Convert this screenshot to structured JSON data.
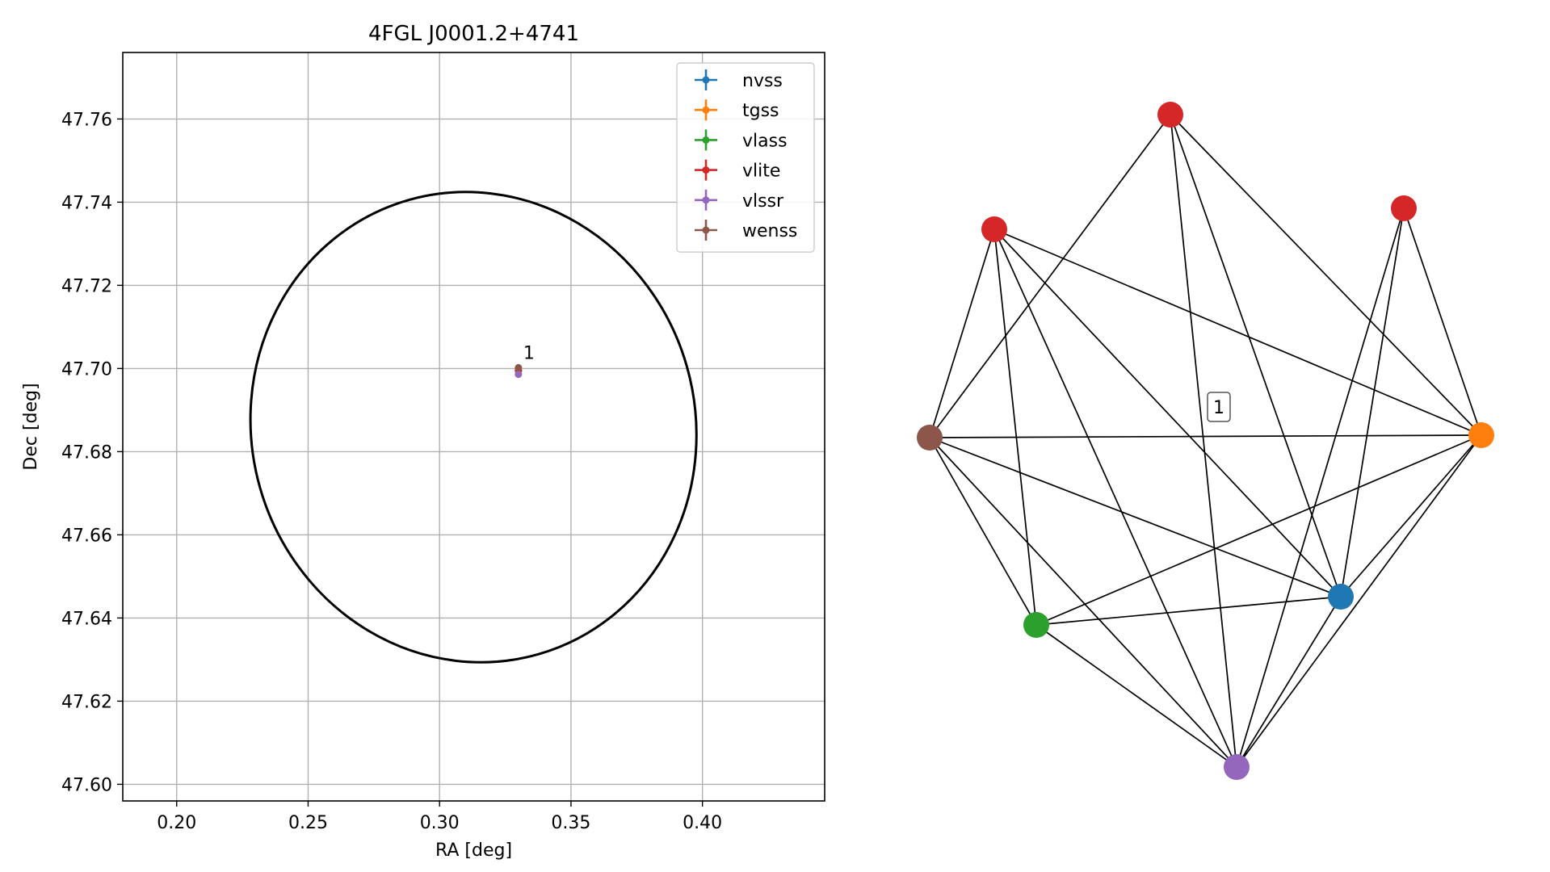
{
  "chart_data": [
    {
      "type": "scatter",
      "title": "4FGL J0001.2+4741",
      "xlabel": "RA [deg]",
      "ylabel": "Dec [deg]",
      "xlim": [
        0.1795,
        0.4465
      ],
      "ylim": [
        47.596,
        47.776
      ],
      "xticks": [
        0.2,
        0.25,
        0.3,
        0.35,
        0.4
      ],
      "xtick_labels": [
        "0.20",
        "0.25",
        "0.30",
        "0.35",
        "0.40"
      ],
      "yticks": [
        47.6,
        47.62,
        47.64,
        47.66,
        47.68,
        47.7,
        47.72,
        47.74,
        47.76
      ],
      "ytick_labels": [
        "47.60",
        "47.62",
        "47.64",
        "47.66",
        "47.68",
        "47.70",
        "47.72",
        "47.74",
        "47.76"
      ],
      "grid": true,
      "legend_position": "top-right",
      "ellipse": {
        "center_ra": 0.3129,
        "center_dec": 47.6859,
        "semi_ra": 0.0844,
        "semi_dec": 0.0568,
        "tilt_deg": -16,
        "color": "#000000"
      },
      "series": [
        {
          "name": "nvss",
          "color": "#1f77b4",
          "points": [
            {
              "ra": 0.33,
              "dec": 47.6995
            }
          ]
        },
        {
          "name": "tgss",
          "color": "#ff7f0e",
          "points": [
            {
              "ra": 0.33,
              "dec": 47.6995
            }
          ]
        },
        {
          "name": "vlass",
          "color": "#2ca02c",
          "points": [
            {
              "ra": 0.33,
              "dec": 47.6995
            }
          ]
        },
        {
          "name": "vlite",
          "color": "#d62728",
          "points": [
            {
              "ra": 0.33,
              "dec": 47.6995
            }
          ]
        },
        {
          "name": "vlssr",
          "color": "#9467bd",
          "points": [
            {
              "ra": 0.33,
              "dec": 47.6986
            }
          ]
        },
        {
          "name": "wenss",
          "color": "#8c564b",
          "points": [
            {
              "ra": 0.33,
              "dec": 47.7002
            }
          ]
        }
      ],
      "annotations": [
        {
          "text": "1",
          "ra": 0.33,
          "dec": 47.7002
        }
      ]
    },
    {
      "type": "network",
      "cluster_label": "1",
      "nodes": [
        {
          "id": "vlite_a",
          "color": "#d62728"
        },
        {
          "id": "vlite_b",
          "color": "#d62728"
        },
        {
          "id": "vlite_c",
          "color": "#d62728"
        },
        {
          "id": "wenss",
          "color": "#8c564b"
        },
        {
          "id": "tgss",
          "color": "#ff7f0e"
        },
        {
          "id": "nvss",
          "color": "#1f77b4"
        },
        {
          "id": "vlass",
          "color": "#2ca02c"
        },
        {
          "id": "vlssr",
          "color": "#9467bd"
        }
      ],
      "edges": [
        [
          "vlite_a",
          "wenss"
        ],
        [
          "vlite_a",
          "tgss"
        ],
        [
          "vlite_a",
          "nvss"
        ],
        [
          "vlite_a",
          "vlssr"
        ],
        [
          "vlite_b",
          "wenss"
        ],
        [
          "vlite_b",
          "tgss"
        ],
        [
          "vlite_b",
          "nvss"
        ],
        [
          "vlite_b",
          "vlass"
        ],
        [
          "vlite_b",
          "vlssr"
        ],
        [
          "vlite_c",
          "tgss"
        ],
        [
          "vlite_c",
          "nvss"
        ],
        [
          "vlite_c",
          "vlssr"
        ],
        [
          "wenss",
          "tgss"
        ],
        [
          "wenss",
          "nvss"
        ],
        [
          "wenss",
          "vlass"
        ],
        [
          "wenss",
          "vlssr"
        ],
        [
          "tgss",
          "vlass"
        ],
        [
          "tgss",
          "nvss"
        ],
        [
          "tgss",
          "vlssr"
        ],
        [
          "vlass",
          "nvss"
        ],
        [
          "vlass",
          "vlssr"
        ],
        [
          "nvss",
          "vlssr"
        ]
      ]
    }
  ]
}
